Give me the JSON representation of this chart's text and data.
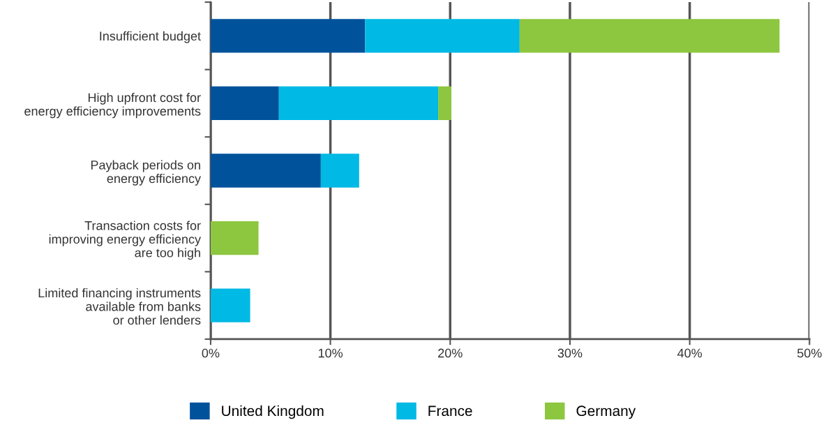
{
  "chart_data": {
    "type": "bar",
    "orientation": "horizontal",
    "stacked": true,
    "categories": [
      "Insufficient budget",
      "High upfront cost for\nenergy efficiency improvements",
      "Payback periods on\nenergy efficiency",
      "Transaction costs for\nimproving energy efficiency\nare too high",
      "Limited financing instruments\navailable from banks\nor other lenders"
    ],
    "series": [
      {
        "name": "United Kingdom",
        "color": "#00529b",
        "values": [
          12.9,
          5.7,
          9.2,
          null,
          null
        ]
      },
      {
        "name": "France",
        "color": "#00b9e4",
        "values": [
          12.9,
          13.3,
          3.2,
          null,
          3.3
        ]
      },
      {
        "name": "Germany",
        "color": "#8dc63f",
        "values": [
          21.7,
          1.1,
          null,
          4.0,
          null
        ]
      }
    ],
    "xlim": [
      0,
      50
    ],
    "xticks": [
      {
        "value": 0,
        "label": "0%"
      },
      {
        "value": 10,
        "label": "10%"
      },
      {
        "value": 20,
        "label": "20%"
      },
      {
        "value": 30,
        "label": "30%"
      },
      {
        "value": 40,
        "label": "40%"
      },
      {
        "value": 50,
        "label": "50%"
      }
    ],
    "grid": "x",
    "legend": "bottom"
  }
}
